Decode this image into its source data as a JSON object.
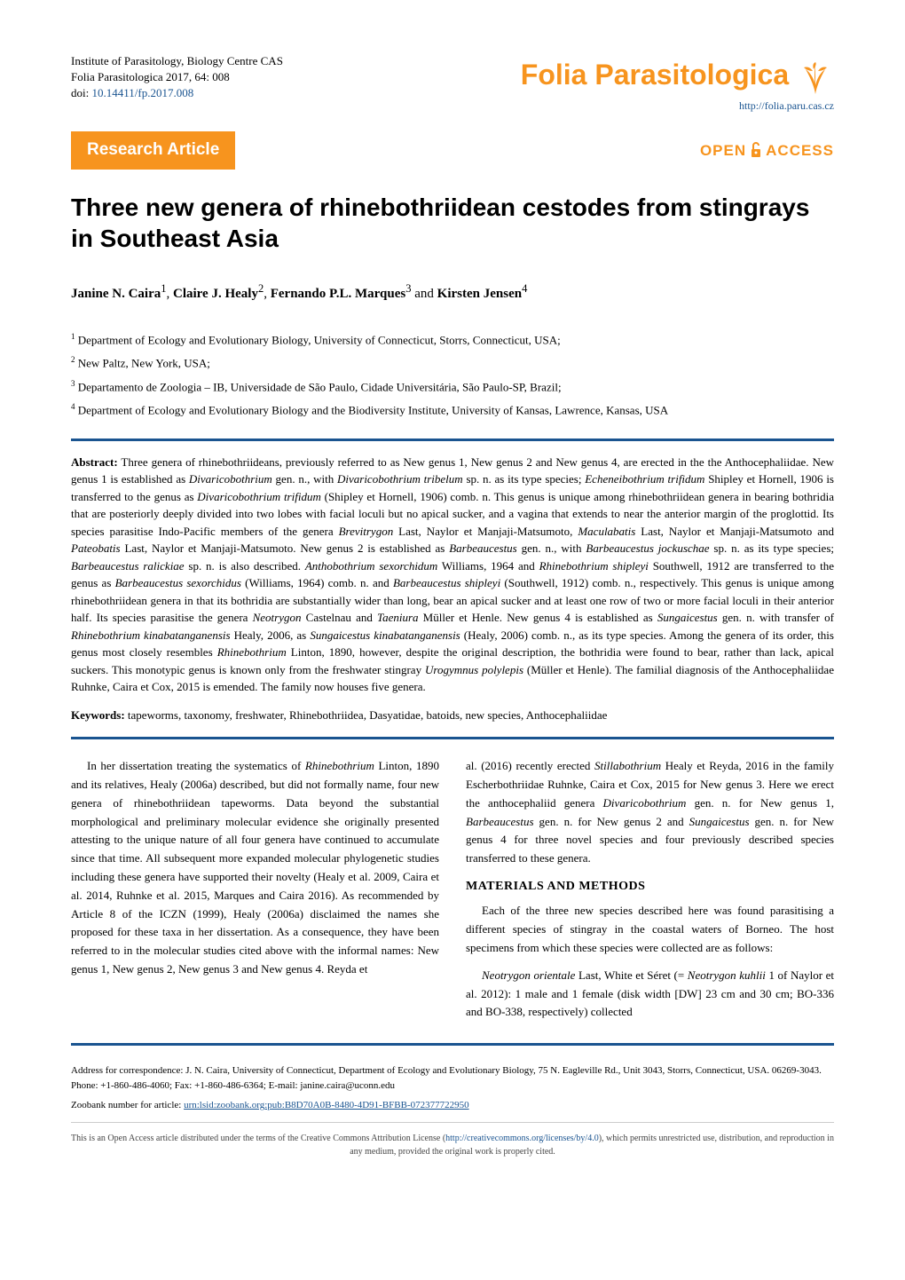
{
  "header": {
    "institute": "Institute of Parasitology, Biology Centre CAS",
    "citation": "Folia Parasitologica 2017, 64: 008",
    "doi_label": "doi: ",
    "doi": "10.14411/fp.2017.008",
    "journal_name": "Folia Parasitologica",
    "journal_url": "http://folia.paru.cas.cz",
    "logo_color": "#f7941e",
    "logo_text_fontsize": 32
  },
  "article_type": {
    "label": "Research Article",
    "bg_color": "#f7941e",
    "text_color": "#ffffff"
  },
  "open_access": {
    "open": "OPEN",
    "access": "ACCESS",
    "color": "#f7941e"
  },
  "title": "Three new genera of rhinebothriidean cestodes from stingrays in Southeast Asia",
  "authors_html": "<span class='name'>Janine N. Caira</span><sup>1</sup>, <span class='name'>Claire J. Healy</span><sup>2</sup>, <span class='name'>Fernando P.L. Marques</span><sup>3</sup> and <span class='name'>Kirsten Jensen</span><sup>4</sup>",
  "affiliations": [
    {
      "num": "1",
      "text": "Department of Ecology and Evolutionary Biology, University of Connecticut, Storrs, Connecticut, USA;"
    },
    {
      "num": "2",
      "text": "New Paltz, New York, USA;"
    },
    {
      "num": "3",
      "text": "Departamento de Zoologia – IB, Universidade de São Paulo, Cidade Universitária, São Paulo-SP, Brazil;"
    },
    {
      "num": "4",
      "text": "Department of Ecology and Evolutionary Biology and the Biodiversity Institute, University of Kansas, Lawrence, Kansas, USA"
    }
  ],
  "rule_color": "#1a5490",
  "abstract": {
    "label": "Abstract:",
    "html": "Three genera of rhinebothriideans, previously referred to as New genus 1, New genus 2 and New genus 4, are erected in the the Anthocephaliidae. New genus 1 is established as <em>Divaricobothrium</em> gen. n., with <em>Divaricobothrium tribelum</em> sp. n. as its type species; <em>Echeneibothrium trifidum</em> Shipley et Hornell, 1906 is transferred to the genus as <em>Divaricobothrium trifidum</em> (Shipley et Hornell, 1906) comb. n. This genus is unique among rhinebothriidean genera in bearing bothridia that are posteriorly deeply divided into two lobes with facial loculi but no apical sucker, and a vagina that extends to near the anterior margin of the proglottid. Its species parasitise Indo-Pacific members of the genera <em>Brevitrygon</em> Last, Naylor et Manjaji-Matsumoto, <em>Maculabatis</em> Last, Naylor et Manjaji-Matsumoto and <em>Pateobatis</em> Last, Naylor et Manjaji-Matsumoto. New genus 2 is established as <em>Barbeaucestus</em> gen. n., with <em>Barbeaucestus jockuschae</em> sp. n. as its type species; <em>Barbeaucestus ralickiae</em> sp. n. is also described. <em>Anthobothrium sexorchidum</em> Williams, 1964 and <em>Rhinebothrium shipleyi</em> Southwell, 1912 are transferred to the genus as <em>Barbeaucestus sexorchidus</em> (Williams, 1964) comb. n. and <em>Barbeaucestus shipleyi</em> (Southwell, 1912) comb. n., respectively. This genus is unique among rhinebothriidean genera in that its bothridia are substantially wider than long, bear an apical sucker and at least one row of two or more facial loculi in their anterior half. Its species parasitise the genera <em>Neotrygon</em> Castelnau and <em>Taeniura</em> Müller et Henle. New genus 4 is established as <em>Sungaicestus</em> gen. n. with transfer of <em>Rhinebothrium kinabatanganensis</em> Healy, 2006, as <em>Sungaicestus kinabatanganensis</em> (Healy, 2006) comb. n., as its type species. Among the genera of its order, this genus most closely resembles <em>Rhinebothrium</em> Linton, 1890, however, despite the original description, the bothridia were found to bear, rather than lack, apical suckers. This monotypic genus is known only from the freshwater stingray <em>Urogymnus polylepis</em> (Müller et Henle). The familial diagnosis of the Anthocephaliidae Ruhnke, Caira et Cox, 2015 is emended. The family now houses five genera."
  },
  "keywords": {
    "label": "Keywords:",
    "text": "tapeworms, taxonomy, freshwater, Rhinebothriidea, Dasyatidae, batoids, new species, Anthocephaliidae"
  },
  "body": {
    "left_html": "<p>In her dissertation treating the systematics of <em>Rhinebothrium</em> Linton, 1890 and its relatives, Healy (2006a) described, but did not formally name, four new genera of rhinebothriidean tapeworms. Data beyond the substantial morphological and preliminary molecular evidence she originally presented attesting to the unique nature of all four genera have continued to accumulate since that time. All subsequent more expanded molecular phylogenetic studies including these genera have supported their novelty (Healy et al. 2009, Caira et al. 2014, Ruhnke et al. 2015, Marques and Caira 2016). As recommended by Article 8 of the ICZN (1999), Healy (2006a) disclaimed the names she proposed for these taxa in her dissertation. As a consequence, they have been referred to in the molecular studies cited above with the informal names: New genus 1, New genus 2, New genus 3 and New genus 4. Reyda et</p>",
    "right_html": "<p class='no-indent'>al. (2016) recently erected <em>Stillabothrium</em> Healy et Reyda, 2016 in the family Escherbothriidae Ruhnke, Caira et Cox, 2015 for New genus 3. Here we erect the anthocephaliid genera <em>Divaricobothrium</em> gen. n. for New genus 1, <em>Barbeaucestus</em> gen. n. for New genus 2 and <em>Sungaicestus</em> gen. n. for New genus 4 for three novel species and four previously described species transferred to these genera.</p><div class='section-head' data-name='materials-methods-heading' data-interactable='false'>MATERIALS AND METHODS</div><p>Each of the three new species described here was found parasitising a different species of stingray in the coastal waters of Borneo. The host specimens from which these species were collected are as follows:</p><p><em>Neotrygon orientale</em> Last, White et Séret (= <em>Neotrygon kuhlii</em> 1 of Naylor et al. 2012): 1 male and 1 female (disk width [DW] 23 cm and 30 cm; BO-336 and BO-338, respectively) collected</p>"
  },
  "correspondence": {
    "text": "Address for correspondence: J. N. Caira, University of Connecticut, Department of Ecology and Evolutionary Biology, 75 N. Eagleville Rd., Unit 3043, Storrs, Connecticut, USA. 06269-3043. Phone: +1-860-486-4060; Fax: +1-860-486-6364; E-mail: janine.caira@uconn.edu",
    "zoobank_label": "Zoobank number for article: ",
    "zoobank_urn": "urn:lsid:zoobank.org:pub:B8D70A0B-8480-4D91-BFBB-072377722950"
  },
  "license": {
    "html": "This is an Open Access article distributed under the terms of the Creative Commons Attribution License (<a href='#'>http://creativecommons.org/licenses/by/4.0</a>), which permits unrestricted use, distribution, and reproduction in any medium, provided the original work is properly cited."
  },
  "colors": {
    "link": "#1a5490",
    "accent": "#f7941e",
    "text": "#000000",
    "background": "#ffffff",
    "rule_thin": "#cccccc"
  }
}
